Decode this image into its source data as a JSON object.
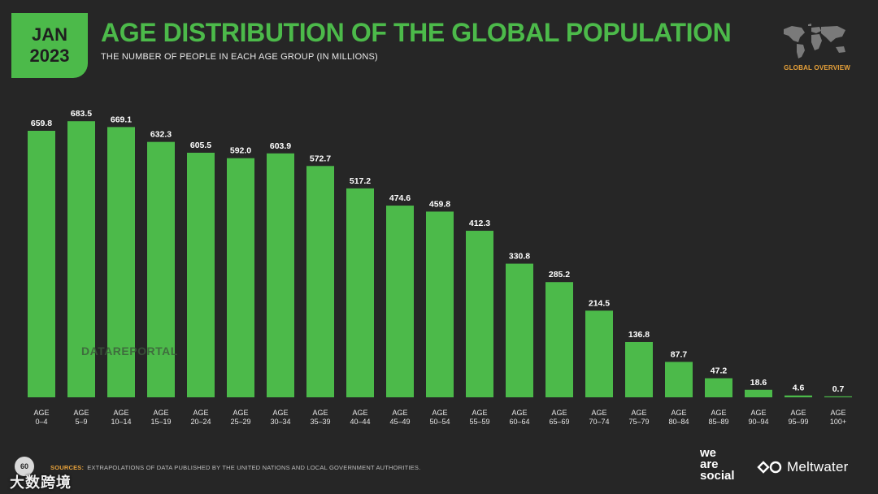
{
  "header": {
    "badge_month": "JAN",
    "badge_year": "2023",
    "title": "AGE DISTRIBUTION OF THE GLOBAL POPULATION",
    "subtitle": "THE NUMBER OF PEOPLE IN EACH AGE GROUP (IN MILLIONS)",
    "section_label": "GLOBAL OVERVIEW",
    "map_icon": "world-map-icon"
  },
  "chart_data": {
    "type": "bar",
    "title": "AGE DISTRIBUTION OF THE GLOBAL POPULATION",
    "subtitle": "THE NUMBER OF PEOPLE IN EACH AGE GROUP (IN MILLIONS)",
    "xlabel": "",
    "ylabel": "",
    "ylim": [
      0,
      700
    ],
    "grid": false,
    "bar_color": "#4cba4a",
    "categories": [
      [
        "AGE",
        "0–4"
      ],
      [
        "AGE",
        "5–9"
      ],
      [
        "AGE",
        "10–14"
      ],
      [
        "AGE",
        "15–19"
      ],
      [
        "AGE",
        "20–24"
      ],
      [
        "AGE",
        "25–29"
      ],
      [
        "AGE",
        "30–34"
      ],
      [
        "AGE",
        "35–39"
      ],
      [
        "AGE",
        "40–44"
      ],
      [
        "AGE",
        "45–49"
      ],
      [
        "AGE",
        "50–54"
      ],
      [
        "AGE",
        "55–59"
      ],
      [
        "AGE",
        "60–64"
      ],
      [
        "AGE",
        "65–69"
      ],
      [
        "AGE",
        "70–74"
      ],
      [
        "AGE",
        "75–79"
      ],
      [
        "AGE",
        "80–84"
      ],
      [
        "AGE",
        "85–89"
      ],
      [
        "AGE",
        "90–94"
      ],
      [
        "AGE",
        "95–99"
      ],
      [
        "AGE",
        "100+"
      ]
    ],
    "values": [
      659.8,
      683.5,
      669.1,
      632.3,
      605.5,
      592.0,
      603.9,
      572.7,
      517.2,
      474.6,
      459.8,
      412.3,
      330.8,
      285.2,
      214.5,
      136.8,
      87.7,
      47.2,
      18.6,
      4.6,
      0.7
    ],
    "value_labels": [
      "659.8",
      "683.5",
      "669.1",
      "632.3",
      "605.5",
      "592.0",
      "603.9",
      "572.7",
      "517.2",
      "474.6",
      "459.8",
      "412.3",
      "330.8",
      "285.2",
      "214.5",
      "136.8",
      "87.7",
      "47.2",
      "18.6",
      "4.6",
      "0.7"
    ]
  },
  "watermark": "DATAREPORTAL",
  "footer": {
    "sources_label": "SOURCES:",
    "sources_text": "EXTRAPOLATIONS OF DATA PUBLISHED BY THE UNITED NATIONS AND LOCAL GOVERNMENT AUTHORITIES.",
    "page_number": "60",
    "stamp": "大数跨境",
    "brand_1_line1": "we",
    "brand_1_line2": "are",
    "brand_1_line3": "social",
    "brand_2": "Meltwater"
  }
}
